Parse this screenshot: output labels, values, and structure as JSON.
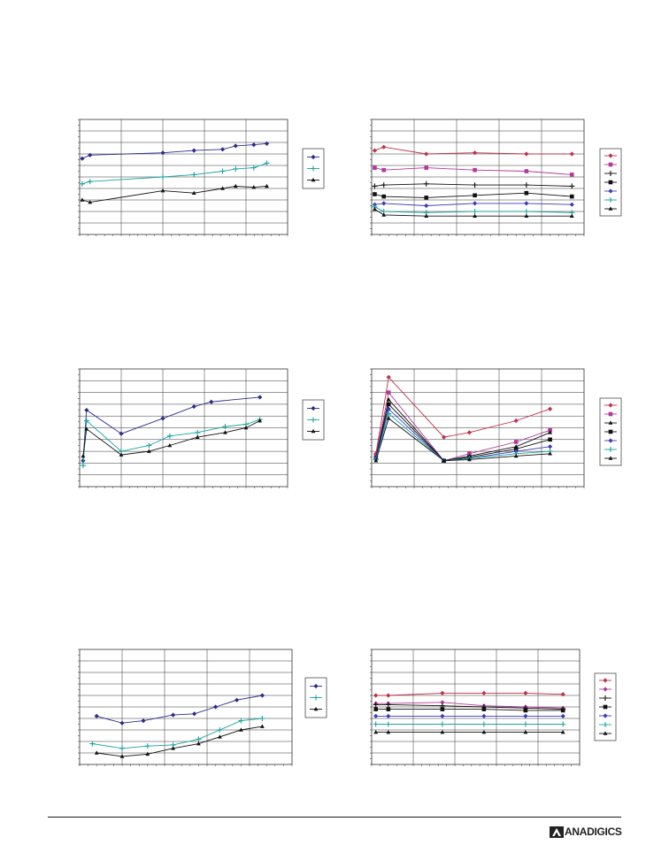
{
  "brand": {
    "logo_text": "ANADIGICS"
  },
  "colors": {
    "navy": "#2b2b8a",
    "teal": "#1aa3a3",
    "black": "#111111",
    "red": "#c0304a",
    "magenta": "#b0399a",
    "blue": "#3b3bb8",
    "grid": "#333333"
  },
  "chart_data": [
    {
      "id": "chart-1",
      "type": "line",
      "grid": true,
      "legend": "right",
      "ylim": [
        0,
        10
      ],
      "series": [
        {
          "color": "#2b2b8a",
          "marker": "diamond",
          "points": [
            [
              0.1,
              6.6
            ],
            [
              0.4,
              6.9
            ],
            [
              3.2,
              7.1
            ],
            [
              4.4,
              7.3
            ],
            [
              5.5,
              7.4
            ],
            [
              6.0,
              7.7
            ],
            [
              6.7,
              7.8
            ],
            [
              7.2,
              7.9
            ]
          ]
        },
        {
          "color": "#1aa3a3",
          "marker": "plus",
          "points": [
            [
              0.1,
              4.4
            ],
            [
              0.4,
              4.6
            ],
            [
              3.2,
              5.0
            ],
            [
              4.4,
              5.2
            ],
            [
              5.5,
              5.5
            ],
            [
              6.0,
              5.7
            ],
            [
              6.7,
              5.8
            ],
            [
              7.2,
              6.2
            ]
          ]
        },
        {
          "color": "#111111",
          "marker": "triangle",
          "points": [
            [
              0.1,
              3.0
            ],
            [
              0.4,
              2.8
            ],
            [
              3.2,
              3.8
            ],
            [
              4.4,
              3.6
            ],
            [
              5.5,
              4.0
            ],
            [
              6.0,
              4.2
            ],
            [
              6.7,
              4.1
            ],
            [
              7.2,
              4.2
            ]
          ]
        }
      ]
    },
    {
      "id": "chart-2",
      "type": "line",
      "grid": true,
      "legend": "right",
      "ylim": [
        0,
        10
      ],
      "series": [
        {
          "color": "#c0304a",
          "marker": "diamond",
          "points": [
            [
              0.1,
              7.3
            ],
            [
              0.4,
              7.6
            ],
            [
              1.8,
              7.0
            ],
            [
              3.4,
              7.1
            ],
            [
              5.1,
              7.0
            ],
            [
              6.6,
              7.0
            ]
          ]
        },
        {
          "color": "#b0399a",
          "marker": "square",
          "points": [
            [
              0.1,
              5.8
            ],
            [
              0.4,
              5.6
            ],
            [
              1.8,
              5.8
            ],
            [
              3.4,
              5.6
            ],
            [
              5.1,
              5.5
            ],
            [
              6.6,
              5.2
            ]
          ]
        },
        {
          "color": "#111111",
          "marker": "plus",
          "points": [
            [
              0.1,
              4.2
            ],
            [
              0.4,
              4.3
            ],
            [
              1.8,
              4.4
            ],
            [
              3.4,
              4.3
            ],
            [
              5.1,
              4.3
            ],
            [
              6.6,
              4.2
            ]
          ]
        },
        {
          "color": "#111111",
          "marker": "square",
          "points": [
            [
              0.1,
              3.5
            ],
            [
              0.4,
              3.3
            ],
            [
              1.8,
              3.2
            ],
            [
              3.4,
              3.4
            ],
            [
              5.1,
              3.6
            ],
            [
              6.6,
              3.3
            ]
          ]
        },
        {
          "color": "#3b3bb8",
          "marker": "diamond",
          "points": [
            [
              0.1,
              2.6
            ],
            [
              0.4,
              2.7
            ],
            [
              1.8,
              2.5
            ],
            [
              3.4,
              2.7
            ],
            [
              5.1,
              2.7
            ],
            [
              6.6,
              2.6
            ]
          ]
        },
        {
          "color": "#1aa3a3",
          "marker": "plus",
          "points": [
            [
              0.1,
              2.4
            ],
            [
              0.4,
              2.0
            ],
            [
              1.8,
              1.9
            ],
            [
              3.4,
              2.0
            ],
            [
              5.1,
              2.0
            ],
            [
              6.6,
              1.9
            ]
          ]
        },
        {
          "color": "#111111",
          "marker": "triangle",
          "points": [
            [
              0.1,
              2.2
            ],
            [
              0.4,
              1.7
            ],
            [
              1.8,
              1.6
            ],
            [
              3.4,
              1.6
            ],
            [
              5.1,
              1.6
            ],
            [
              6.6,
              1.6
            ]
          ]
        }
      ]
    },
    {
      "id": "chart-3",
      "type": "line",
      "grid": true,
      "legend": "right",
      "ylim": [
        0,
        10
      ],
      "series": [
        {
          "color": "#2b2b8a",
          "marker": "diamond",
          "points": [
            [
              0.1,
              2.2
            ],
            [
              0.2,
              6.5
            ],
            [
              1.2,
              4.5
            ],
            [
              2.4,
              5.8
            ],
            [
              3.3,
              6.8
            ],
            [
              3.8,
              7.2
            ],
            [
              5.2,
              7.6
            ]
          ]
        },
        {
          "color": "#1aa3a3",
          "marker": "plus",
          "points": [
            [
              0.1,
              1.8
            ],
            [
              0.2,
              5.6
            ],
            [
              1.2,
              3.0
            ],
            [
              2.0,
              3.5
            ],
            [
              2.6,
              4.3
            ],
            [
              3.4,
              4.6
            ],
            [
              4.2,
              5.1
            ],
            [
              4.8,
              5.3
            ],
            [
              5.2,
              5.7
            ]
          ]
        },
        {
          "color": "#111111",
          "marker": "triangle",
          "points": [
            [
              0.1,
              2.6
            ],
            [
              0.2,
              4.9
            ],
            [
              1.2,
              2.7
            ],
            [
              2.0,
              3.0
            ],
            [
              2.6,
              3.5
            ],
            [
              3.4,
              4.2
            ],
            [
              4.2,
              4.6
            ],
            [
              4.8,
              5.0
            ],
            [
              5.2,
              5.6
            ]
          ]
        }
      ]
    },
    {
      "id": "chart-4",
      "type": "line",
      "grid": true,
      "legend": "right",
      "ylim": [
        0,
        10
      ],
      "series": [
        {
          "color": "#c0304a",
          "marker": "diamond",
          "points": [
            [
              0.1,
              2.8
            ],
            [
              0.4,
              9.3
            ],
            [
              1.7,
              4.2
            ],
            [
              2.3,
              4.6
            ],
            [
              3.4,
              5.6
            ],
            [
              4.2,
              6.6
            ]
          ]
        },
        {
          "color": "#b0399a",
          "marker": "square",
          "points": [
            [
              0.1,
              2.6
            ],
            [
              0.4,
              8.0
            ],
            [
              1.7,
              2.2
            ],
            [
              2.3,
              2.8
            ],
            [
              3.4,
              3.8
            ],
            [
              4.2,
              4.8
            ]
          ]
        },
        {
          "color": "#111111",
          "marker": "triangle",
          "points": [
            [
              0.1,
              2.5
            ],
            [
              0.4,
              7.4
            ],
            [
              1.7,
              2.2
            ],
            [
              2.3,
              2.6
            ],
            [
              3.4,
              3.4
            ],
            [
              4.2,
              4.6
            ]
          ]
        },
        {
          "color": "#111111",
          "marker": "square",
          "points": [
            [
              0.1,
              2.4
            ],
            [
              0.4,
              7.0
            ],
            [
              1.7,
              2.2
            ],
            [
              2.3,
              2.5
            ],
            [
              3.4,
              3.2
            ],
            [
              4.2,
              4.0
            ]
          ]
        },
        {
          "color": "#3b3bb8",
          "marker": "diamond",
          "points": [
            [
              0.1,
              2.4
            ],
            [
              0.4,
              6.6
            ],
            [
              1.7,
              2.2
            ],
            [
              2.3,
              2.4
            ],
            [
              3.4,
              3.0
            ],
            [
              4.2,
              3.4
            ]
          ]
        },
        {
          "color": "#1aa3a3",
          "marker": "plus",
          "points": [
            [
              0.1,
              2.3
            ],
            [
              0.4,
              6.2
            ],
            [
              1.7,
              2.2
            ],
            [
              2.3,
              2.4
            ],
            [
              3.4,
              2.8
            ],
            [
              4.2,
              3.0
            ]
          ]
        },
        {
          "color": "#111111",
          "marker": "triangle",
          "points": [
            [
              0.1,
              2.2
            ],
            [
              0.4,
              5.8
            ],
            [
              1.7,
              2.2
            ],
            [
              2.3,
              2.3
            ],
            [
              3.4,
              2.6
            ],
            [
              4.2,
              2.8
            ]
          ]
        }
      ]
    },
    {
      "id": "chart-5",
      "type": "line",
      "grid": true,
      "legend": "right",
      "ylim": [
        0,
        10
      ],
      "series": [
        {
          "color": "#2b2b8a",
          "marker": "diamond",
          "points": [
            [
              0.4,
              4.2
            ],
            [
              1.0,
              3.6
            ],
            [
              1.5,
              3.8
            ],
            [
              2.2,
              4.3
            ],
            [
              2.7,
              4.4
            ],
            [
              3.2,
              5.0
            ],
            [
              3.7,
              5.6
            ],
            [
              4.3,
              6.0
            ]
          ]
        },
        {
          "color": "#1aa3a3",
          "marker": "plus",
          "points": [
            [
              0.3,
              1.8
            ],
            [
              1.0,
              1.4
            ],
            [
              1.6,
              1.6
            ],
            [
              2.2,
              1.7
            ],
            [
              2.8,
              2.2
            ],
            [
              3.3,
              3.0
            ],
            [
              3.8,
              3.8
            ],
            [
              4.3,
              4.0
            ]
          ]
        },
        {
          "color": "#111111",
          "marker": "triangle",
          "points": [
            [
              0.4,
              1.0
            ],
            [
              1.0,
              0.7
            ],
            [
              1.6,
              0.9
            ],
            [
              2.2,
              1.4
            ],
            [
              2.8,
              1.8
            ],
            [
              3.3,
              2.4
            ],
            [
              3.8,
              3.0
            ],
            [
              4.3,
              3.3
            ]
          ]
        }
      ]
    },
    {
      "id": "chart-6",
      "type": "line",
      "grid": true,
      "legend": "right",
      "ylim": [
        0,
        10
      ],
      "series": [
        {
          "color": "#c0304a",
          "marker": "diamond",
          "points": [
            [
              0.1,
              6.0
            ],
            [
              0.4,
              6.0
            ],
            [
              1.7,
              6.2
            ],
            [
              2.7,
              6.2
            ],
            [
              3.7,
              6.2
            ],
            [
              4.6,
              6.1
            ]
          ]
        },
        {
          "color": "#b0399a",
          "marker": "diamond",
          "points": [
            [
              0.1,
              5.3
            ],
            [
              0.4,
              5.3
            ],
            [
              1.7,
              5.4
            ],
            [
              2.7,
              5.1
            ],
            [
              3.7,
              5.0
            ],
            [
              4.6,
              4.9
            ]
          ]
        },
        {
          "color": "#111111",
          "marker": "plus",
          "points": [
            [
              0.1,
              5.2
            ],
            [
              0.4,
              5.2
            ],
            [
              1.7,
              5.1
            ],
            [
              2.7,
              5.0
            ],
            [
              3.7,
              4.9
            ],
            [
              4.6,
              4.8
            ]
          ]
        },
        {
          "color": "#111111",
          "marker": "square",
          "points": [
            [
              0.1,
              4.8
            ],
            [
              0.4,
              4.8
            ],
            [
              1.7,
              4.8
            ],
            [
              2.7,
              4.8
            ],
            [
              3.7,
              4.7
            ],
            [
              4.6,
              4.7
            ]
          ]
        },
        {
          "color": "#3b3bb8",
          "marker": "diamond",
          "points": [
            [
              0.1,
              4.2
            ],
            [
              0.4,
              4.2
            ],
            [
              1.7,
              4.2
            ],
            [
              2.7,
              4.2
            ],
            [
              3.7,
              4.2
            ],
            [
              4.6,
              4.2
            ]
          ]
        },
        {
          "color": "#1aa3a3",
          "marker": "plus",
          "points": [
            [
              0.1,
              3.5
            ],
            [
              0.4,
              3.5
            ],
            [
              1.7,
              3.5
            ],
            [
              2.7,
              3.5
            ],
            [
              3.7,
              3.5
            ],
            [
              4.6,
              3.5
            ]
          ]
        },
        {
          "color": "#111111",
          "marker": "triangle",
          "points": [
            [
              0.1,
              2.8
            ],
            [
              0.4,
              2.8
            ],
            [
              1.7,
              2.8
            ],
            [
              2.7,
              2.8
            ],
            [
              3.7,
              2.8
            ],
            [
              4.6,
              2.8
            ]
          ]
        }
      ]
    }
  ]
}
